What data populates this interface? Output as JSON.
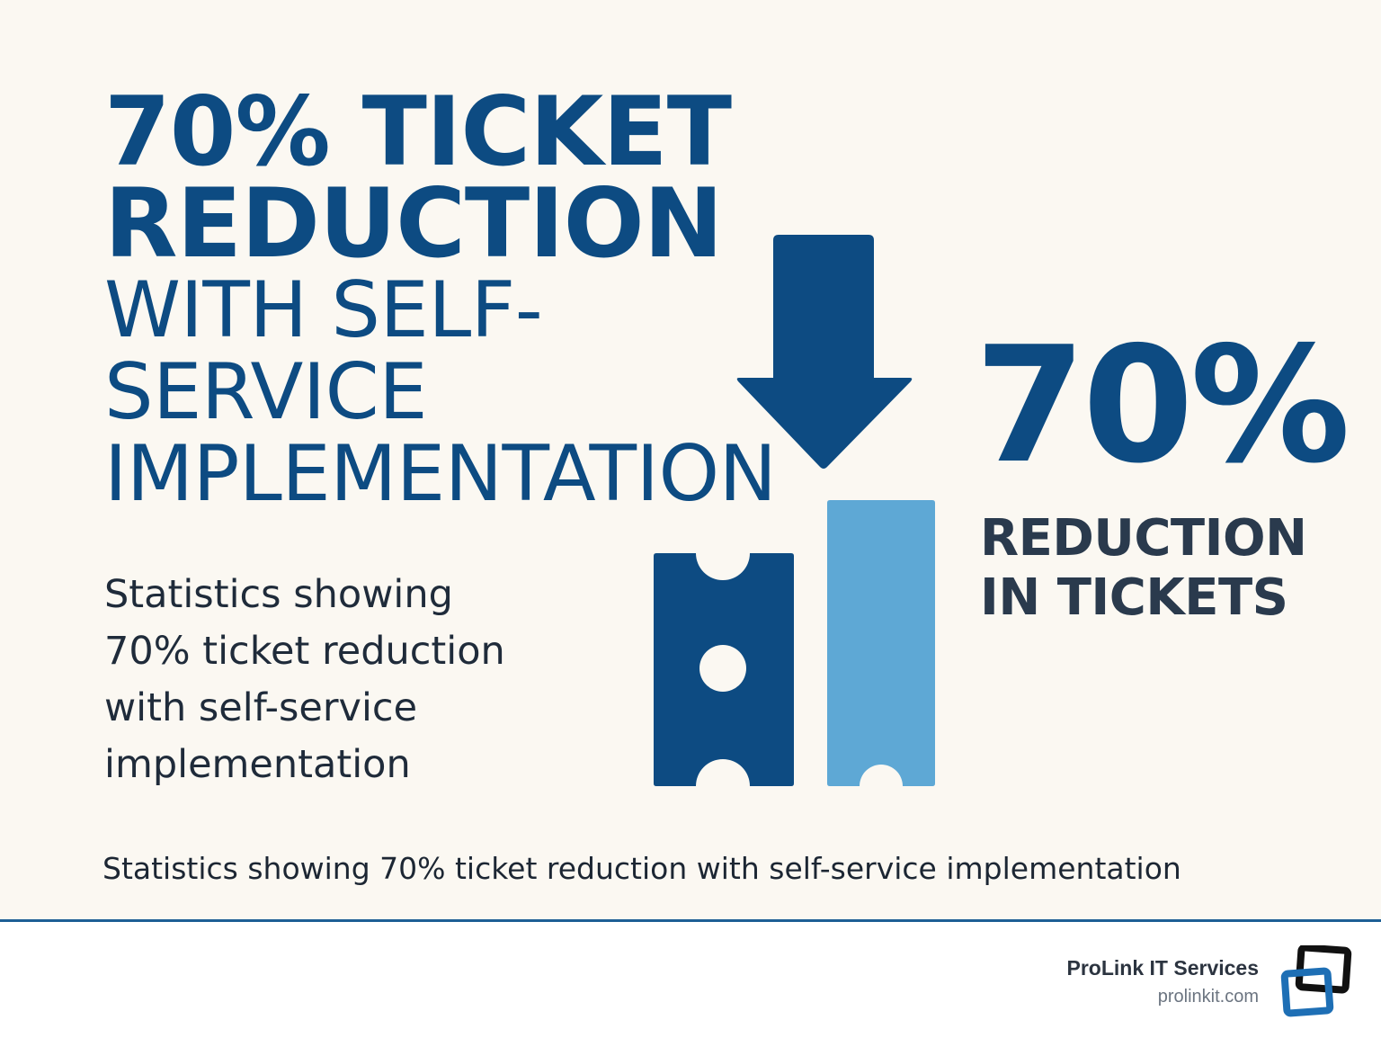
{
  "headline": {
    "bold_lines": [
      "70% TICKET",
      "REDUCTION"
    ],
    "light_lines": [
      "WITH SELF-",
      "SERVICE",
      "IMPLEMENTATION"
    ]
  },
  "subtext_lines": [
    "Statistics showing",
    "70% ticket reduction",
    "with self-service",
    "implementation"
  ],
  "stat": {
    "value": "70%",
    "label_lines": [
      "REDUCTION",
      "IN TICKETS"
    ]
  },
  "caption": "Statistics showing 70% ticket reduction with self-service implementation",
  "footer": {
    "brand_name": "ProLink IT Services",
    "brand_url": "prolinkit.com"
  },
  "icons": {
    "arrow": "down-arrow-icon",
    "ticket_dark": "ticket-icon",
    "ticket_light": "ticket-icon",
    "logo": "prolink-logo-icon"
  },
  "colors": {
    "primary": "#0d4b82",
    "accent": "#5ea8d5",
    "background": "#fbf8f2",
    "divider": "#1e5f95"
  }
}
